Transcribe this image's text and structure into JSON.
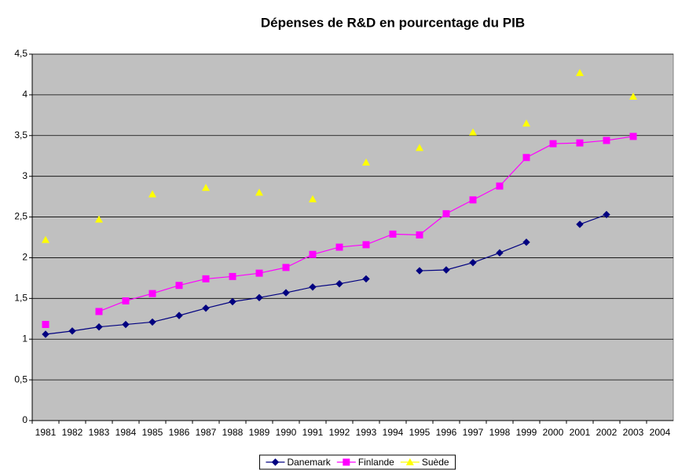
{
  "chart_data": {
    "type": "line",
    "title": "Dépenses de R&D en pourcentage du PIB",
    "categories": [
      "1981",
      "1982",
      "1983",
      "1984",
      "1985",
      "1986",
      "1987",
      "1988",
      "1989",
      "1990",
      "1991",
      "1992",
      "1993",
      "1994",
      "1995",
      "1996",
      "1997",
      "1998",
      "1999",
      "2000",
      "2001",
      "2002",
      "2003",
      "2004"
    ],
    "series": [
      {
        "name": "Danemark",
        "color": "#000080",
        "marker": "diamond",
        "values": [
          1.06,
          1.1,
          1.15,
          1.18,
          1.21,
          1.29,
          1.38,
          1.46,
          1.51,
          1.57,
          1.64,
          1.68,
          1.74,
          null,
          1.84,
          1.85,
          1.94,
          2.06,
          2.19,
          null,
          2.41,
          2.53,
          null,
          null
        ]
      },
      {
        "name": "Finlande",
        "color": "#FF00FF",
        "marker": "square",
        "values": [
          1.18,
          null,
          1.34,
          1.47,
          1.56,
          1.66,
          1.74,
          1.77,
          1.81,
          1.88,
          2.04,
          2.13,
          2.16,
          2.29,
          2.28,
          2.54,
          2.71,
          2.88,
          3.23,
          3.4,
          3.41,
          3.44,
          3.49,
          null
        ]
      },
      {
        "name": "Suède",
        "color": "#FFFF00",
        "marker": "triangle",
        "values": [
          2.22,
          null,
          2.47,
          null,
          2.78,
          null,
          2.86,
          null,
          2.8,
          null,
          2.72,
          null,
          3.17,
          null,
          3.35,
          null,
          3.54,
          null,
          3.65,
          null,
          4.27,
          null,
          3.98,
          null
        ]
      }
    ],
    "ylim": [
      0,
      4.5
    ],
    "yticks": [
      0,
      {
        "value": 0.5,
        "label": "0,5"
      },
      1,
      {
        "value": 1.5,
        "label": "1,5"
      },
      2,
      {
        "value": 2.5,
        "label": "2,5"
      },
      3,
      {
        "value": 3.5,
        "label": "3,5"
      },
      4,
      {
        "value": 4.5,
        "label": "4,5"
      }
    ],
    "grid": true,
    "plot_background": "#C0C0C0",
    "legend": "bottom"
  }
}
